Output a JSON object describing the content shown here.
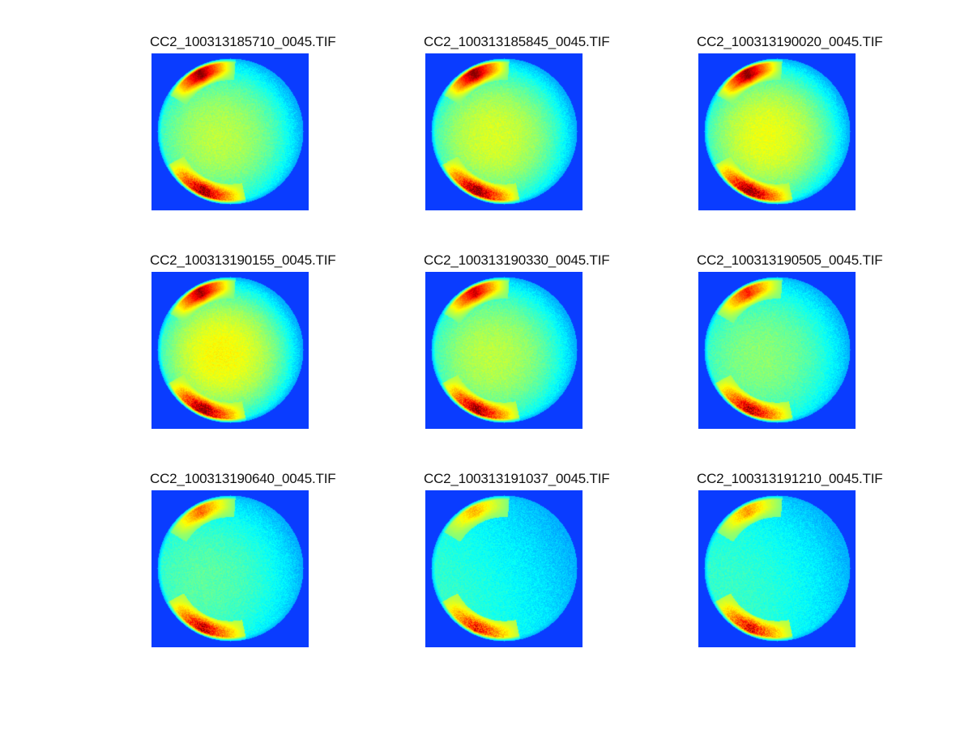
{
  "figure": {
    "background": "#ffffff",
    "colormap": "jet",
    "image_background": "#0a3cff",
    "panels": [
      {
        "title": "CC2_100313185710_0045.TIF",
        "top_arc_intensity": 1.0,
        "bottom_arc_intensity": 0.95,
        "disk_level": 0.55
      },
      {
        "title": "CC2_100313185845_0045.TIF",
        "top_arc_intensity": 1.0,
        "bottom_arc_intensity": 1.0,
        "disk_level": 0.58
      },
      {
        "title": "CC2_100313190020_0045.TIF",
        "top_arc_intensity": 1.0,
        "bottom_arc_intensity": 1.0,
        "disk_level": 0.6
      },
      {
        "title": "CC2_100313190155_0045.TIF",
        "top_arc_intensity": 0.95,
        "bottom_arc_intensity": 1.0,
        "disk_level": 0.62
      },
      {
        "title": "CC2_100313190330_0045.TIF",
        "top_arc_intensity": 0.85,
        "bottom_arc_intensity": 0.95,
        "disk_level": 0.55
      },
      {
        "title": "CC2_100313190505_0045.TIF",
        "top_arc_intensity": 0.7,
        "bottom_arc_intensity": 0.9,
        "disk_level": 0.5
      },
      {
        "title": "CC2_100313190640_0045.TIF",
        "top_arc_intensity": 0.55,
        "bottom_arc_intensity": 0.85,
        "disk_level": 0.45
      },
      {
        "title": "CC2_100313191037_0045.TIF",
        "top_arc_intensity": 0.4,
        "bottom_arc_intensity": 0.7,
        "disk_level": 0.38
      },
      {
        "title": "CC2_100313191210_0045.TIF",
        "top_arc_intensity": 0.45,
        "bottom_arc_intensity": 0.75,
        "disk_level": 0.4
      }
    ]
  }
}
